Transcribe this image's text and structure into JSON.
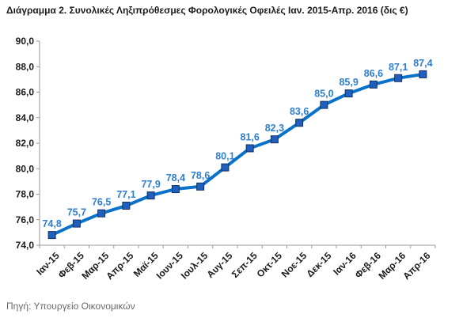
{
  "chart_data": {
    "type": "line",
    "title": "Διάγραμμα 2. Συνολικές Ληξιπρόθεσμες Φορολογικές Οφειλές Ιαν. 2015-Απρ. 2016 (δις €)",
    "categories": [
      "Ιαν-15",
      "Φεβ-15",
      "Μαρ-15",
      "Απρ-15",
      "Μαϊ-15",
      "Ιουν-15",
      "Ιουλ-15",
      "Αυγ-15",
      "Σεπ-15",
      "Οκτ-15",
      "Νοε-15",
      "Δεκ-15",
      "Ιαν-16",
      "Φεβ-16",
      "Μαρ-16",
      "Απρ-16"
    ],
    "values": [
      74.8,
      75.7,
      76.5,
      77.1,
      77.9,
      78.4,
      78.6,
      80.1,
      81.6,
      82.3,
      83.6,
      85.0,
      85.9,
      86.6,
      87.1,
      87.4
    ],
    "data_labels": [
      "74,8",
      "75,7",
      "76,5",
      "77,1",
      "77,9",
      "78,4",
      "78,6",
      "80,1",
      "81,6",
      "82,3",
      "83,6",
      "85,0",
      "85,9",
      "86,6",
      "87,1",
      "87,4"
    ],
    "y_ticks": [
      74,
      76,
      78,
      80,
      82,
      84,
      86,
      88,
      90
    ],
    "y_tick_labels": [
      "74,0",
      "76,0",
      "78,0",
      "80,0",
      "82,0",
      "84,0",
      "86,0",
      "88,0",
      "90,0"
    ],
    "ylim": [
      74,
      90
    ],
    "grid": false,
    "legend": "none",
    "colors": {
      "line": "#0a72c9",
      "marker_fill": "#1f5fbf",
      "marker_stroke": "#16325c",
      "data_label": "#2f7fd0"
    }
  },
  "source": "Πηγή: Υπουργείο Οικονομικών"
}
